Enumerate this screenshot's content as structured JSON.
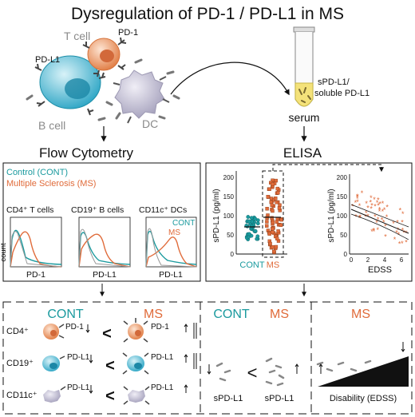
{
  "title": "Dysregulation of PD-1 / PD-L1 in MS",
  "top": {
    "t_cell": "T cell",
    "pd1": "PD-1",
    "pdl1": "PD-L1",
    "b_cell": "B cell",
    "dc": "DC",
    "tube_label_1": "sPD-L1/",
    "tube_label_2": "soluble PD-L1",
    "serum": "serum"
  },
  "methods": {
    "flow": "Flow Cytometry",
    "elisa": "ELISA"
  },
  "flow_panel": {
    "legend_cont": "Control (CONT)",
    "legend_ms": "Multiple Sclerosis (MS)",
    "hist1_title": "CD4⁺ T cells",
    "hist2_title": "CD19⁺ B cells",
    "hist3_title": "CD11c⁺ DCs",
    "hist1_x": "PD-1",
    "hist2_x": "PD-L1",
    "hist3_x": "PD-L1",
    "y_label": "count",
    "inset_cont": "CONT",
    "inset_ms": "MS"
  },
  "elisa_panel": {
    "ylabel": "sPD-L1 (pg/ml)",
    "ylabel2": "sPD-L1 (pg/ml)",
    "cat_cont": "CONT",
    "cat_ms": "MS",
    "xlabel2": "EDSS",
    "yticks1": [
      "0",
      "50",
      "100",
      "150",
      "200"
    ],
    "yticks2": [
      "0",
      "50",
      "100",
      "150",
      "200"
    ],
    "xticks2": [
      "0",
      "2",
      "4",
      "6"
    ]
  },
  "bottom": {
    "cont": "CONT",
    "ms": "MS",
    "row1": "CD4⁺",
    "row2": "CD19⁺",
    "row3": "CD11c⁺",
    "pd1": "PD-1",
    "pdl1": "PD-L1",
    "lt": "<",
    "cont2": "CONT",
    "ms2": "MS",
    "spdl1_a": "sPD-L1",
    "spdl1_b": "sPD-L1",
    "ms3": "MS",
    "disability": "Disability (EDSS)"
  },
  "colors": {
    "cont": "#1a9a9e",
    "ms": "#e06b3a",
    "tcell": "#e89a6a",
    "bcell": "#4cb6cf",
    "dc": "#b7b3c9"
  }
}
